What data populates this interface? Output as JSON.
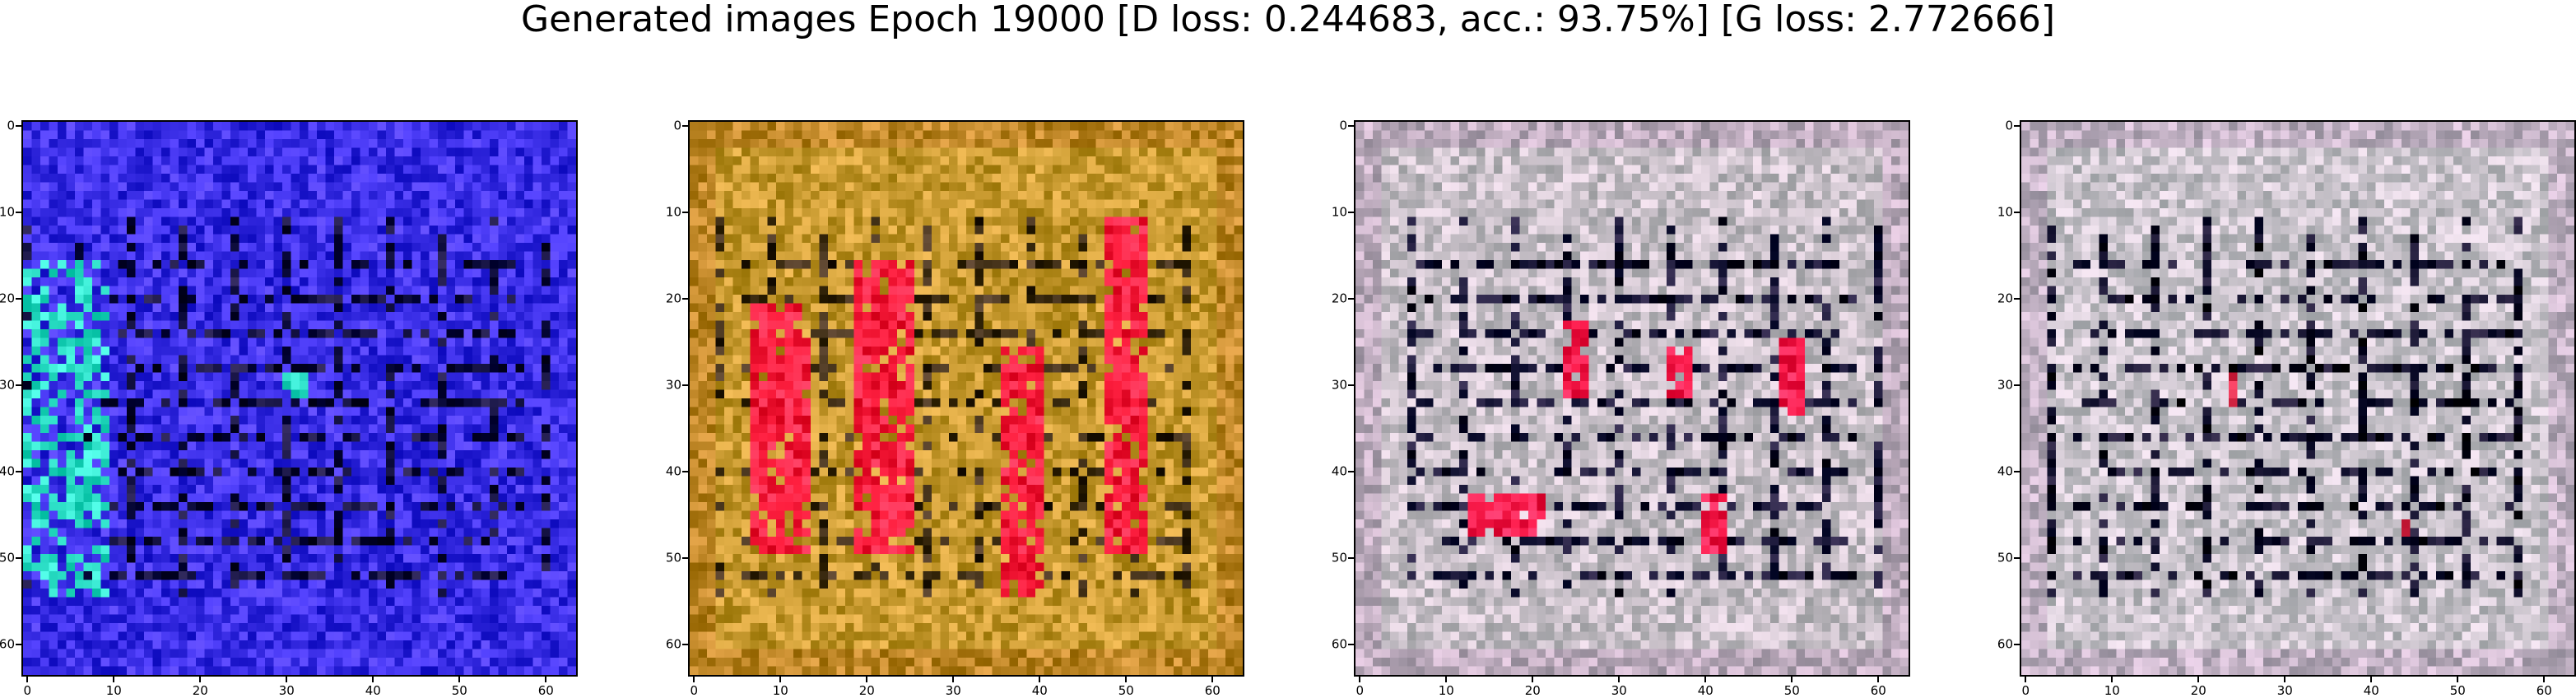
{
  "figure": {
    "title": "Generated images Epoch 19000 [D loss: 0.244683, acc.: 93.75%] [G loss: 2.772666]"
  },
  "axes": {
    "x_ticks": [
      "0",
      "10",
      "20",
      "30",
      "40",
      "50",
      "60"
    ],
    "y_ticks": [
      "0",
      "10",
      "20",
      "30",
      "40",
      "50",
      "60"
    ],
    "x_tick_values": [
      0,
      10,
      20,
      30,
      40,
      50,
      60
    ],
    "y_tick_values": [
      0,
      10,
      20,
      30,
      40,
      50,
      60
    ],
    "pixel_grid": 64
  },
  "panels": [
    {
      "palette": "blue",
      "base": "#3a2ee6",
      "accent": "#2ee0c8",
      "dark": "#0a0a3a"
    },
    {
      "palette": "orange-red",
      "base": "#c89a30",
      "accent": "#ff2040",
      "dark": "#3a2a10"
    },
    {
      "palette": "grey-red",
      "base": "#c8c0c8",
      "accent": "#ff2050",
      "dark": "#101030"
    },
    {
      "palette": "grey",
      "base": "#cac4cc",
      "accent": "#e03050",
      "dark": "#0c0c28"
    }
  ]
}
